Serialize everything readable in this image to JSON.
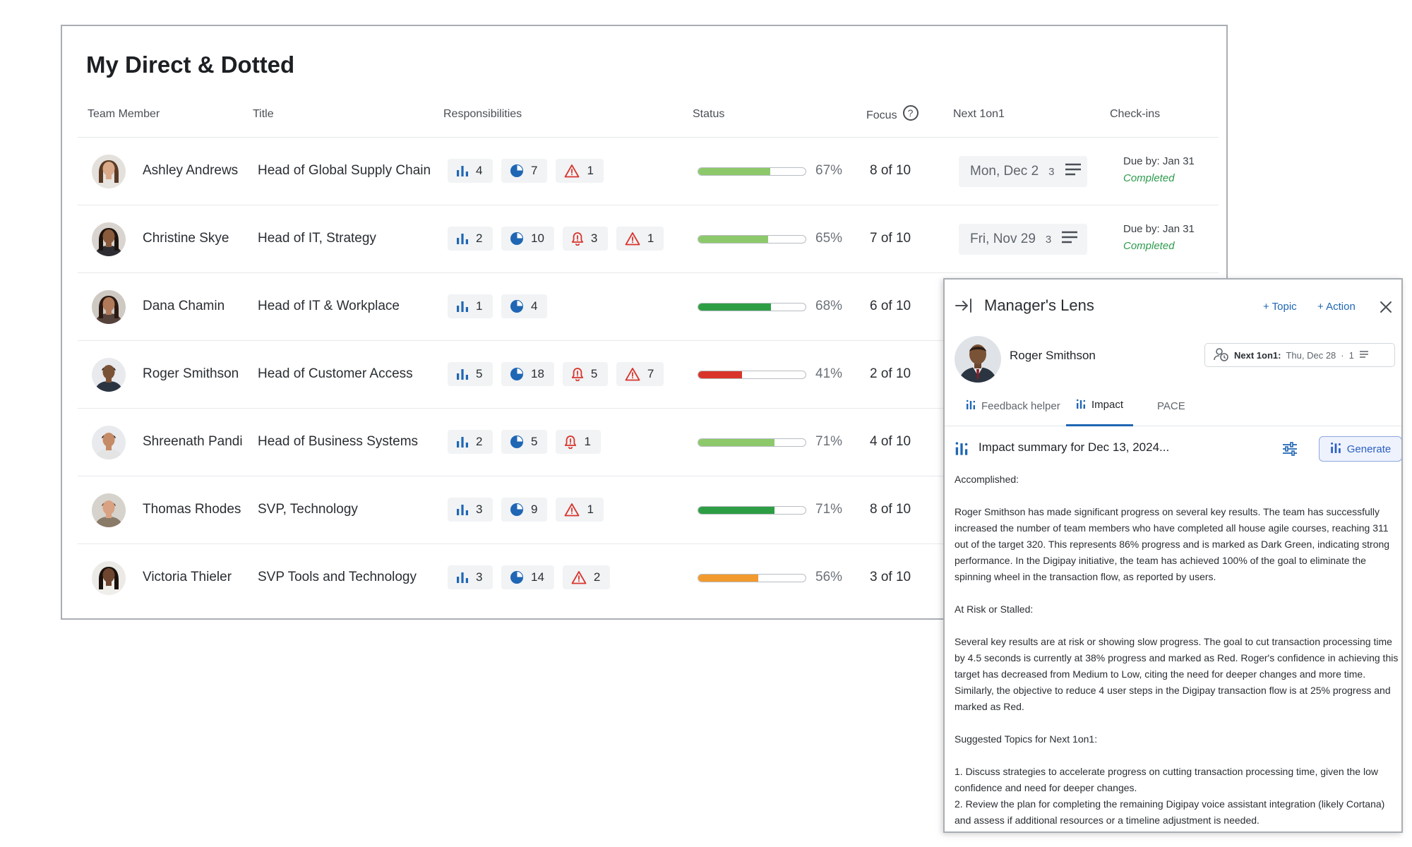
{
  "team": {
    "title": "My Direct & Dotted",
    "headers": {
      "member": "Team Member",
      "title": "Title",
      "responsibilities": "Responsibilities",
      "status": "Status",
      "focus": "Focus",
      "focus_help": "?",
      "next": "Next 1on1",
      "checkins": "Check-ins"
    },
    "rows": [
      {
        "name": "Ashley Andrews",
        "title": "Head of Global Supply Chain",
        "kr": "4",
        "objectives": "7",
        "alerts": null,
        "risks": "1",
        "status_pct": "67%",
        "status_value": 0.67,
        "status_color": "#8dc96a",
        "focus": "8 of 10",
        "next_date": "Mon, Dec 2",
        "next_count": "3",
        "due": "Due by: Jan 31",
        "checkin_state": "Completed"
      },
      {
        "name": "Christine Skye",
        "title": "Head of IT, Strategy",
        "kr": "2",
        "objectives": "10",
        "alerts": "3",
        "risks": "1",
        "status_pct": "65%",
        "status_value": 0.65,
        "status_color": "#8dc96a",
        "focus": "7 of 10",
        "next_date": "Fri, Nov 29",
        "next_count": "3",
        "due": "Due by: Jan 31",
        "checkin_state": "Completed"
      },
      {
        "name": "Dana Chamin",
        "title": "Head of IT & Workplace",
        "kr": "1",
        "objectives": "4",
        "alerts": null,
        "risks": null,
        "status_pct": "68%",
        "status_value": 0.68,
        "status_color": "#2e9e44",
        "focus": "6 of 10"
      },
      {
        "name": "Roger Smithson",
        "title": "Head of Customer Access",
        "kr": "5",
        "objectives": "18",
        "alerts": "5",
        "risks": "7",
        "status_pct": "41%",
        "status_value": 0.41,
        "status_color": "#d9342b",
        "focus": "2 of 10"
      },
      {
        "name": "Shreenath Pandi",
        "title": "Head of Business Systems",
        "kr": "2",
        "objectives": "5",
        "alerts": "1",
        "risks": null,
        "status_pct": "71%",
        "status_value": 0.71,
        "status_color": "#8dc96a",
        "focus": "4 of 10"
      },
      {
        "name": "Thomas Rhodes",
        "title": "SVP, Technology",
        "kr": "3",
        "objectives": "9",
        "alerts": null,
        "risks": "1",
        "status_pct": "71%",
        "status_value": 0.71,
        "status_color": "#2e9e44",
        "focus": "8 of 10"
      },
      {
        "name": "Victoria Thieler",
        "title": "SVP Tools and Technology",
        "kr": "3",
        "objectives": "14",
        "alerts": null,
        "risks": "2",
        "status_pct": "56%",
        "status_value": 0.56,
        "status_color": "#f39a2e",
        "focus": "3 of 10"
      }
    ]
  },
  "lens": {
    "title": "Manager's Lens",
    "add_topic": "+ Topic",
    "add_action": "+ Action",
    "person": "Roger Smithson",
    "next_label": "Next 1on1:",
    "next_date": "Thu, Dec 28",
    "next_sep": "·",
    "next_count": "1",
    "tabs": [
      "Feedback helper",
      "Impact",
      "PACE"
    ],
    "summary_title": "Impact summary for Dec 13, 2024...",
    "generate_label": "Generate",
    "accomplished_heading": "Accomplished:",
    "accomplished_text": "Roger Smithson has made significant progress on several key results. The team has successfully increased the number of team members who have completed all house agile courses, reaching 311 out of the target 320. This represents 86% progress and is marked as Dark Green, indicating strong performance. In the Digipay initiative, the team has achieved 100% of the goal to eliminate the spinning wheel in the transaction flow, as reported by users.",
    "risk_heading": "At Risk or Stalled:",
    "risk_text": "Several key results are at risk or showing slow progress. The goal to cut transaction processing time by 4.5 seconds is currently at 38% progress and marked as Red. Roger's confidence in achieving this target has decreased from Medium to Low, citing the need for deeper changes and more time. Similarly, the objective to reduce 4 user steps in the Digipay transaction flow is at 25% progress and marked as Red.",
    "topics_heading": "Suggested Topics for Next 1on1:",
    "topic_1": "1. Discuss strategies to accelerate progress on cutting transaction processing time, given the low confidence and need for deeper changes.",
    "topic_2": "2. Review the plan for completing the remaining Digipay voice assistant integration (likely Cortana) and assess if additional resources or a timeline adjustment is needed."
  },
  "colors": {
    "accent": "#1f66b4",
    "chip_icon": "#1f66b4",
    "risk": "#d9342b",
    "completed": "#2e9b4e"
  }
}
